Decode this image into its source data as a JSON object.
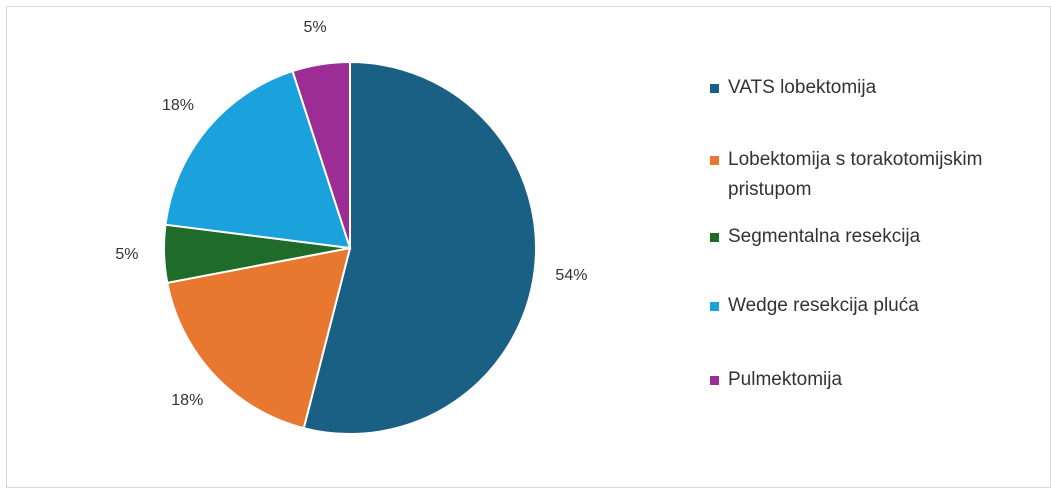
{
  "chart_data": {
    "type": "pie",
    "categories": [
      "VATS lobektomija",
      "Lobektomija s torakotomijskim pristupom",
      "Segmentalna resekcija",
      "Wedge resekcija pluća",
      "Pulmektomija"
    ],
    "values": [
      54,
      18,
      5,
      18,
      5
    ],
    "value_labels": [
      "54%",
      "18%",
      "5%",
      "18%",
      "5%"
    ],
    "colors": [
      "#1a5f84",
      "#e8782f",
      "#1e6b2a",
      "#1ba1dc",
      "#9b2d94"
    ],
    "legend": "right"
  }
}
